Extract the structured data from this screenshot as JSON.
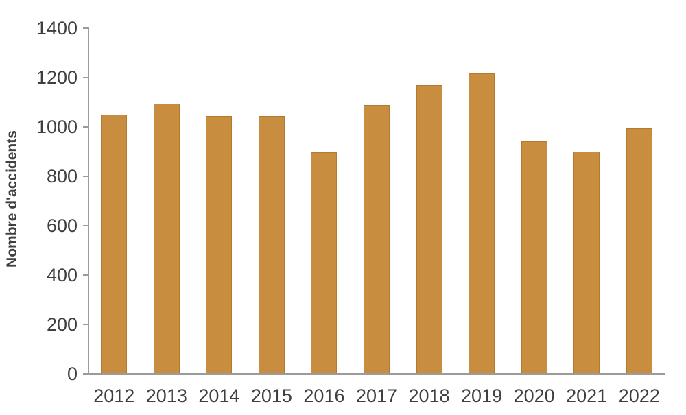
{
  "chart_data": {
    "type": "bar",
    "title": "",
    "xlabel": "",
    "ylabel": "Nombre d'accidents",
    "categories": [
      "2012",
      "2013",
      "2014",
      "2015",
      "2016",
      "2017",
      "2018",
      "2019",
      "2020",
      "2021",
      "2022"
    ],
    "values": [
      1048,
      1092,
      1042,
      1042,
      895,
      1087,
      1167,
      1214,
      940,
      897,
      992
    ],
    "ylim": [
      0,
      1400
    ],
    "yticks": [
      0,
      200,
      400,
      600,
      800,
      1000,
      1200,
      1400
    ],
    "grid": false,
    "legend": false,
    "colors": {
      "bar_fill": "#C98D3F",
      "bar_border": "#B07B2E",
      "axis_line": "#9B9B9B",
      "text": "#3F3F3F"
    }
  }
}
